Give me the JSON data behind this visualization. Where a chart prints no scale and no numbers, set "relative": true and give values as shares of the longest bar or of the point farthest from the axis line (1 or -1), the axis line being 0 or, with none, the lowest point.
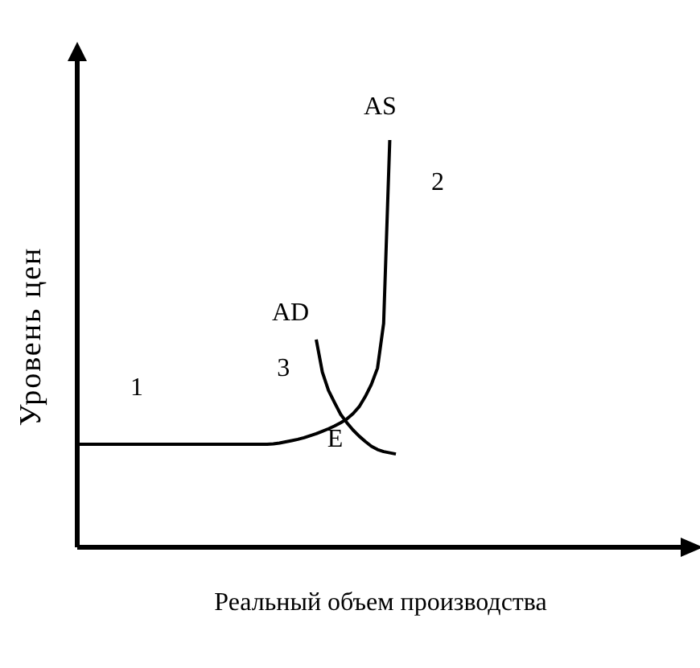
{
  "chart_data": {
    "type": "line",
    "relative": true,
    "xlabel": "Реальный объем производства",
    "ylabel": "Уровень цен",
    "marker": "none",
    "line_style": "solid",
    "categories": [
      null,
      null,
      null,
      null,
      null,
      null,
      null,
      null,
      null,
      null,
      null,
      null,
      null,
      null,
      null,
      null,
      null,
      null,
      null,
      null,
      null,
      null,
      null,
      null,
      null,
      null,
      null,
      null,
      null,
      null,
      null,
      null,
      null,
      null,
      null,
      null,
      null,
      null,
      null,
      null,
      null,
      null,
      null,
      null,
      null,
      null,
      null,
      null,
      null,
      null,
      null,
      null,
      null,
      null,
      null,
      null,
      null,
      null,
      null,
      null,
      null,
      null,
      null,
      null,
      null,
      null,
      null,
      null,
      null,
      null,
      null,
      null,
      null,
      null,
      null,
      null,
      null,
      null,
      null,
      null,
      null,
      null,
      null,
      null,
      null,
      null,
      null,
      null,
      null,
      null,
      null,
      null,
      null,
      null,
      null,
      null,
      null,
      null,
      null,
      null
    ],
    "series": [
      {
        "name": "AS",
        "color": "#000000",
        "values": [
          0.253,
          0.253,
          0.253,
          0.253,
          0.253,
          0.253,
          0.253,
          0.253,
          0.253,
          0.253,
          0.253,
          0.253,
          0.253,
          0.253,
          0.253,
          0.253,
          0.253,
          0.253,
          0.253,
          0.253,
          0.253,
          0.253,
          0.253,
          0.253,
          0.253,
          0.253,
          0.253,
          0.253,
          0.253,
          0.253,
          0.253,
          0.253,
          0.254,
          0.256,
          0.259,
          0.262,
          0.265,
          0.269,
          0.274,
          0.279,
          0.285,
          0.291,
          0.298,
          0.306,
          0.315,
          0.328,
          0.345,
          0.37,
          0.4,
          0.44,
          0.55,
          1,
          null,
          null,
          null,
          null,
          null,
          null,
          null,
          null,
          null,
          null,
          null,
          null,
          null,
          null,
          null,
          null,
          null,
          null,
          null,
          null,
          null,
          null,
          null,
          null,
          null,
          null,
          null,
          null,
          null,
          null,
          null,
          null,
          null,
          null,
          null,
          null,
          null,
          null,
          null,
          null,
          null,
          null,
          null,
          null,
          null,
          null,
          null,
          null
        ]
      },
      {
        "name": "AD",
        "color": "#000000",
        "values": [
          null,
          null,
          null,
          null,
          null,
          null,
          null,
          null,
          null,
          null,
          null,
          null,
          null,
          null,
          null,
          null,
          null,
          null,
          null,
          null,
          null,
          null,
          null,
          null,
          null,
          null,
          null,
          null,
          null,
          null,
          null,
          null,
          null,
          null,
          null,
          null,
          null,
          null,
          null,
          0.51,
          0.43,
          0.385,
          0.355,
          0.326,
          0.306,
          0.288,
          0.273,
          0.26,
          0.248,
          0.24,
          0.235,
          0.232,
          0.229,
          null,
          null,
          null,
          null,
          null,
          null,
          null,
          null,
          null,
          null,
          null,
          null,
          null,
          null,
          null,
          null,
          null,
          null,
          null,
          null,
          null,
          null,
          null,
          null,
          null,
          null,
          null,
          null,
          null,
          null,
          null,
          null,
          null,
          null,
          null,
          null,
          null,
          null,
          null,
          null,
          null,
          null,
          null,
          null,
          null,
          null,
          null
        ]
      }
    ],
    "annotations": [
      "1",
      "2",
      "3",
      "E"
    ]
  }
}
